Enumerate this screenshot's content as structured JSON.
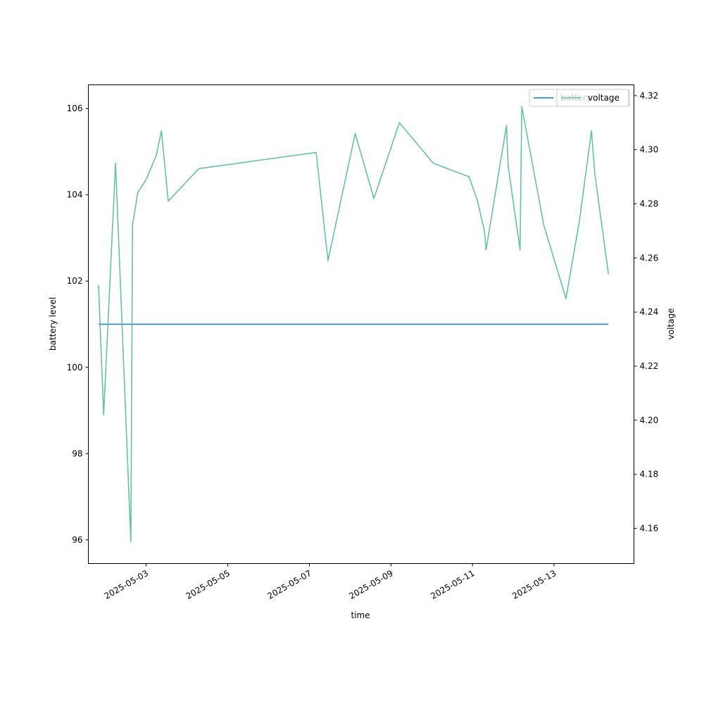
{
  "chart_data": {
    "type": "line",
    "title": "",
    "xlabel": "time",
    "ylabel": "battery level",
    "y2label": "voltage",
    "x_ticks": [
      "2025-05-03",
      "2025-05-05",
      "2025-05-07",
      "2025-05-09",
      "2025-05-11",
      "2025-05-13"
    ],
    "xlim": [
      "2025-05-01T14:00",
      "2025-05-14T23:00"
    ],
    "ylim": [
      95.45,
      106.55
    ],
    "y_ticks": [
      "96",
      "98",
      "100",
      "102",
      "104",
      "106"
    ],
    "y2lim": [
      4.147,
      4.324
    ],
    "y2_ticks": [
      "4.16",
      "4.18",
      "4.20",
      "4.22",
      "4.24",
      "4.26",
      "4.28",
      "4.30",
      "4.32"
    ],
    "grid": false,
    "series": [
      {
        "name": "battery",
        "axis": "left",
        "color": "#1f77b4",
        "points": [
          {
            "x": "2025-05-01T20:00",
            "y": 101
          },
          {
            "x": "2025-05-14T08:00",
            "y": 101
          }
        ]
      },
      {
        "name": "voltage",
        "axis": "right",
        "color": "#66c2a5",
        "points": [
          {
            "x": "2025-05-01T20:00",
            "y": 4.25
          },
          {
            "x": "2025-05-01T23:00",
            "y": 4.202
          },
          {
            "x": "2025-05-02T06:00",
            "y": 4.295
          },
          {
            "x": "2025-05-02T15:00",
            "y": 4.155
          },
          {
            "x": "2025-05-02T16:00",
            "y": 4.272
          },
          {
            "x": "2025-05-02T19:00",
            "y": 4.284
          },
          {
            "x": "2025-05-03T00:00",
            "y": 4.289
          },
          {
            "x": "2025-05-03T06:00",
            "y": 4.298
          },
          {
            "x": "2025-05-03T09:00",
            "y": 4.307
          },
          {
            "x": "2025-05-03T13:00",
            "y": 4.281
          },
          {
            "x": "2025-05-04T07:00",
            "y": 4.293
          },
          {
            "x": "2025-05-07T04:00",
            "y": 4.299
          },
          {
            "x": "2025-05-07T11:00",
            "y": 4.259
          },
          {
            "x": "2025-05-08T03:00",
            "y": 4.306
          },
          {
            "x": "2025-05-08T14:00",
            "y": 4.282
          },
          {
            "x": "2025-05-09T05:00",
            "y": 4.31
          },
          {
            "x": "2025-05-10T01:00",
            "y": 4.295
          },
          {
            "x": "2025-05-10T22:00",
            "y": 4.29
          },
          {
            "x": "2025-05-11T03:00",
            "y": 4.281
          },
          {
            "x": "2025-05-11T07:00",
            "y": 4.27
          },
          {
            "x": "2025-05-11T08:00",
            "y": 4.263
          },
          {
            "x": "2025-05-11T20:00",
            "y": 4.309
          },
          {
            "x": "2025-05-11T21:00",
            "y": 4.294
          },
          {
            "x": "2025-05-12T04:00",
            "y": 4.263
          },
          {
            "x": "2025-05-12T05:00",
            "y": 4.316
          },
          {
            "x": "2025-05-12T18:00",
            "y": 4.272
          },
          {
            "x": "2025-05-13T07:00",
            "y": 4.245
          },
          {
            "x": "2025-05-13T15:00",
            "y": 4.274
          },
          {
            "x": "2025-05-13T22:00",
            "y": 4.307
          },
          {
            "x": "2025-05-14T00:00",
            "y": 4.291
          },
          {
            "x": "2025-05-14T08:00",
            "y": 4.254
          }
        ]
      }
    ],
    "legends": [
      {
        "label": "battery",
        "color": "#1f77b4",
        "placement": "upper-right"
      },
      {
        "label": "voltage",
        "color": "#66c2a5",
        "placement": "upper-right"
      }
    ]
  }
}
